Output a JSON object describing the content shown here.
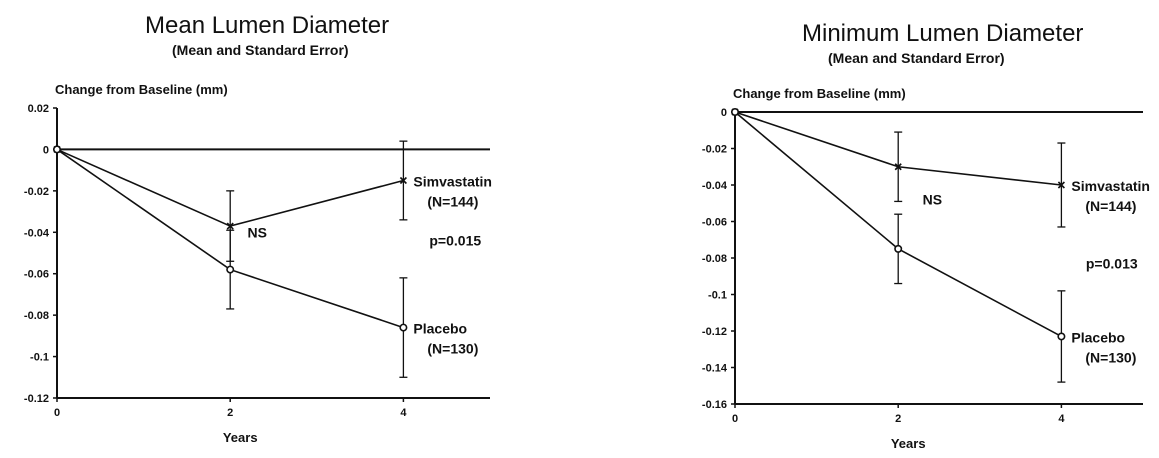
{
  "chart_data": [
    {
      "type": "line",
      "title": "Mean Lumen Diameter",
      "subtitle": "(Mean and Standard Error)",
      "ylabel": "Change from Baseline (mm)",
      "xlabel": "Years",
      "xlim": [
        0,
        5
      ],
      "ylim": [
        -0.12,
        0.02
      ],
      "xticks": [
        0,
        2,
        4
      ],
      "yticks": [
        0.02,
        0,
        -0.02,
        -0.04,
        -0.06,
        -0.08,
        -0.1,
        -0.12
      ],
      "ytick_labels": [
        "0.02",
        "0",
        "-0.02",
        "-0.04",
        "-0.06",
        "-0.08",
        "-0.1",
        "-0.12"
      ],
      "series": [
        {
          "name_lines": [
            "Simvastatin",
            "(N=144)"
          ],
          "marker": "x",
          "x": [
            0,
            2,
            4
          ],
          "y": [
            0,
            -0.037,
            -0.015
          ],
          "err": [
            0,
            0.017,
            0.019
          ]
        },
        {
          "name_lines": [
            "Placebo",
            "(N=130)"
          ],
          "marker": "circle",
          "x": [
            0,
            2,
            4
          ],
          "y": [
            0,
            -0.058,
            -0.086
          ],
          "err": [
            0,
            0.019,
            0.024
          ]
        }
      ],
      "annotations": [
        {
          "text": "NS",
          "x": 2.2,
          "y": -0.04
        },
        {
          "text": "p=0.015",
          "x": 4.3,
          "y": -0.044
        }
      ]
    },
    {
      "type": "line",
      "title": "Minimum Lumen Diameter",
      "subtitle": "(Mean and Standard Error)",
      "ylabel": "Change from Baseline (mm)",
      "xlabel": "Years",
      "xlim": [
        0,
        5
      ],
      "ylim": [
        -0.16,
        0
      ],
      "xticks": [
        0,
        2,
        4
      ],
      "yticks": [
        0,
        -0.02,
        -0.04,
        -0.06,
        -0.08,
        -0.1,
        -0.12,
        -0.14,
        -0.16
      ],
      "ytick_labels": [
        "0",
        "-0.02",
        "-0.04",
        "-0.06",
        "-0.08",
        "-0.1",
        "-0.12",
        "-0.14",
        "-0.16"
      ],
      "series": [
        {
          "name_lines": [
            "Simvastatin",
            "(N=144)"
          ],
          "marker": "x",
          "x": [
            0,
            2,
            4
          ],
          "y": [
            0,
            -0.03,
            -0.04
          ],
          "err": [
            0,
            0.019,
            0.023
          ]
        },
        {
          "name_lines": [
            "Placebo",
            "(N=130)"
          ],
          "marker": "circle",
          "x": [
            0,
            2,
            4
          ],
          "y": [
            0,
            -0.075,
            -0.123
          ],
          "err": [
            0,
            0.019,
            0.025
          ]
        }
      ],
      "annotations": [
        {
          "text": "NS",
          "x": 2.3,
          "y": -0.048
        },
        {
          "text": "p=0.013",
          "x": 4.3,
          "y": -0.083
        }
      ]
    }
  ]
}
